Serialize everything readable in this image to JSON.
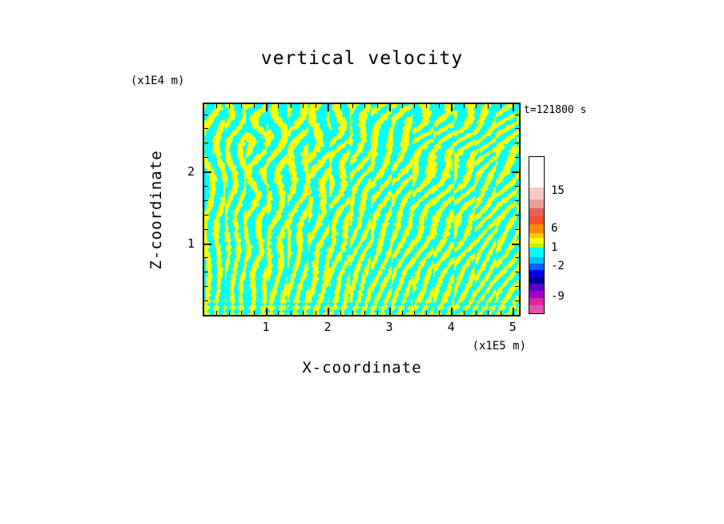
{
  "title": "vertical velocity",
  "time_label": "t=121800 s",
  "axes": {
    "x_label": "X-coordinate",
    "x_unit": "(x1E5 m)",
    "y_label": "Z-coordinate",
    "y_unit": "(x1E4 m)",
    "x_ticks": [
      {
        "text": "1",
        "value": 1
      },
      {
        "text": "2",
        "value": 2
      },
      {
        "text": "3",
        "value": 3
      },
      {
        "text": "4",
        "value": 4
      },
      {
        "text": "5",
        "value": 5
      }
    ],
    "y_ticks": [
      {
        "text": "2",
        "value": 2
      },
      {
        "text": "1",
        "value": 1
      }
    ]
  },
  "chart_data": {
    "type": "heatmap",
    "title": "vertical velocity",
    "xlabel": "X-coordinate (x1E5 m)",
    "ylabel": "Z-coordinate (x1E4 m)",
    "time": "t=121800 s",
    "x_range": [
      0,
      5.1
    ],
    "y_range": [
      0,
      2.94
    ],
    "x_major_ticks": [
      1,
      2,
      3,
      4,
      5
    ],
    "y_major_ticks": [
      1,
      2
    ],
    "minor_tick_step": 0.2,
    "field": {
      "description": "Turbulent vertical-velocity cross-section: interleaved plumes, yellow = weak positive values (approx 0 to 1), cyan = weak negative values (approx -2 to 0); fine vertical striping near the bottom boundary, broader diagonal criss-cross cells aloft.",
      "positive_color": "#FFFF00",
      "negative_color": "#00FFFF",
      "value_threshold": 0
    },
    "colorbar": {
      "level_labels": [
        "15",
        "6",
        "1",
        "-2",
        "-9"
      ],
      "labels": [
        {
          "text": "15",
          "pos": 0.22
        },
        {
          "text": "6",
          "pos": 0.46
        },
        {
          "text": "1",
          "pos": 0.585
        },
        {
          "text": "-2",
          "pos": 0.705
        },
        {
          "text": "-9",
          "pos": 0.895
        }
      ],
      "segments": [
        {
          "color": "#FFFFFF",
          "h": 38
        },
        {
          "color": "#F6C8C8",
          "h": 15
        },
        {
          "color": "#EE9A9A",
          "h": 11
        },
        {
          "color": "#E66060",
          "h": 10
        },
        {
          "color": "#F4512C",
          "h": 10
        },
        {
          "color": "#FF8A00",
          "h": 11
        },
        {
          "color": "#FFC800",
          "h": 6
        },
        {
          "color": "#FFFF00",
          "h": 7
        },
        {
          "color": "#C8F000",
          "h": 5
        },
        {
          "color": "#00FFFF",
          "h": 12
        },
        {
          "color": "#00BFFF",
          "h": 8
        },
        {
          "color": "#0064FF",
          "h": 8
        },
        {
          "color": "#0000E6",
          "h": 9
        },
        {
          "color": "#000096",
          "h": 8
        },
        {
          "color": "#5A00C8",
          "h": 9
        },
        {
          "color": "#A000C8",
          "h": 9
        },
        {
          "color": "#DC28A0",
          "h": 9
        },
        {
          "color": "#E650B4",
          "h": 10
        }
      ]
    }
  }
}
